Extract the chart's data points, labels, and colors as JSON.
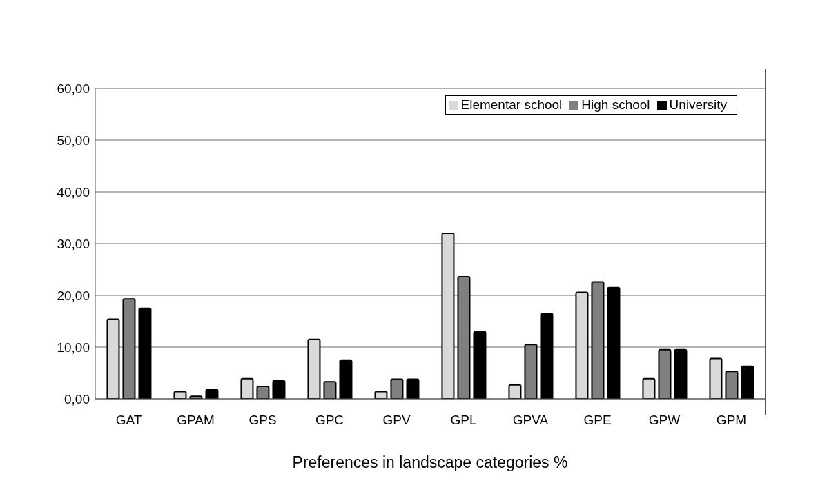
{
  "chart_data": {
    "type": "bar",
    "xlabel": "Preferences in landscape categories %",
    "categories": [
      "GAT",
      "GPAM",
      "GPS",
      "GPC",
      "GPV",
      "GPL",
      "GPVA",
      "GPE",
      "GPW",
      "GPM"
    ],
    "series": [
      {
        "name": "Elementar school",
        "color": "#d9d9d9",
        "values": [
          15.4,
          1.4,
          3.9,
          11.5,
          1.4,
          32.0,
          2.7,
          20.6,
          3.9,
          7.8
        ]
      },
      {
        "name": "High school",
        "color": "#808080",
        "values": [
          19.3,
          0.5,
          2.4,
          3.3,
          3.8,
          23.6,
          10.5,
          22.6,
          9.5,
          5.3
        ]
      },
      {
        "name": "University",
        "color": "#000000",
        "values": [
          17.5,
          1.8,
          3.5,
          7.5,
          3.8,
          13.0,
          16.5,
          21.5,
          9.5,
          6.3
        ]
      }
    ],
    "ylim": [
      0,
      60
    ],
    "yticks": [
      {
        "value": 0,
        "label": "0,00"
      },
      {
        "value": 10,
        "label": "10,00"
      },
      {
        "value": 20,
        "label": "20,00"
      },
      {
        "value": 30,
        "label": "30,00"
      },
      {
        "value": 40,
        "label": "40,00"
      },
      {
        "value": 50,
        "label": "50,00"
      },
      {
        "value": 60,
        "label": "60,00"
      }
    ],
    "grid": "y",
    "legend": "top right"
  }
}
